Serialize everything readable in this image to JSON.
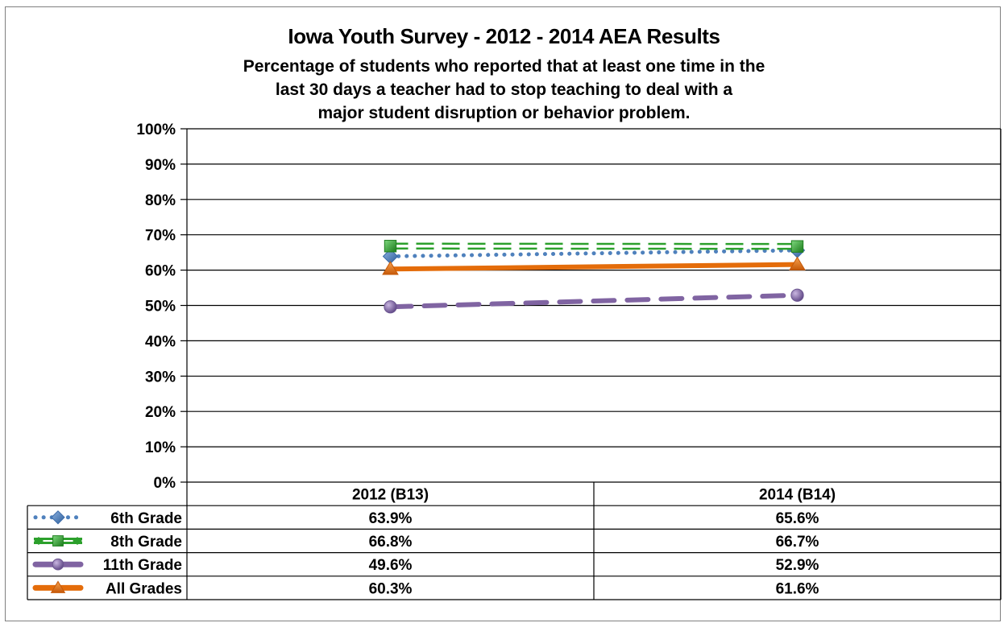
{
  "chart_data": {
    "type": "line",
    "title": "Iowa Youth Survey - 2012 - 2014 AEA Results",
    "subtitle_lines": [
      "Percentage of students who reported that at least one time in the",
      "last 30 days a teacher had to stop teaching to deal with a",
      "major student disruption or behavior problem."
    ],
    "categories": [
      "2012 (B13)",
      "2014 (B14)"
    ],
    "ylim": [
      0,
      100
    ],
    "y_ticks": [
      {
        "value": 0,
        "label": "0%"
      },
      {
        "value": 10,
        "label": "10%"
      },
      {
        "value": 20,
        "label": "20%"
      },
      {
        "value": 30,
        "label": "30%"
      },
      {
        "value": 40,
        "label": "40%"
      },
      {
        "value": 50,
        "label": "50%"
      },
      {
        "value": 60,
        "label": "60%"
      },
      {
        "value": 70,
        "label": "70%"
      },
      {
        "value": 80,
        "label": "80%"
      },
      {
        "value": 90,
        "label": "90%"
      },
      {
        "value": 100,
        "label": "100%"
      }
    ],
    "grid": true,
    "legend": "data-table",
    "series": [
      {
        "name": "6th Grade",
        "values": [
          63.9,
          65.6
        ],
        "labels": [
          "63.9%",
          "65.6%"
        ],
        "color": "#4f81bd",
        "dash": "dotted",
        "marker": "diamond"
      },
      {
        "name": "8th Grade",
        "values": [
          66.8,
          66.7
        ],
        "labels": [
          "66.8%",
          "66.7%"
        ],
        "color": "#2ca02c",
        "dash": "double-dash",
        "marker": "square"
      },
      {
        "name": "11th Grade",
        "values": [
          49.6,
          52.9
        ],
        "labels": [
          "49.6%",
          "52.9%"
        ],
        "color": "#8064a2",
        "dash": "long-dash",
        "marker": "circle"
      },
      {
        "name": "All Grades",
        "values": [
          60.3,
          61.6
        ],
        "labels": [
          "60.3%",
          "61.6%"
        ],
        "color": "#e46c0a",
        "dash": "solid",
        "marker": "triangle"
      }
    ]
  }
}
